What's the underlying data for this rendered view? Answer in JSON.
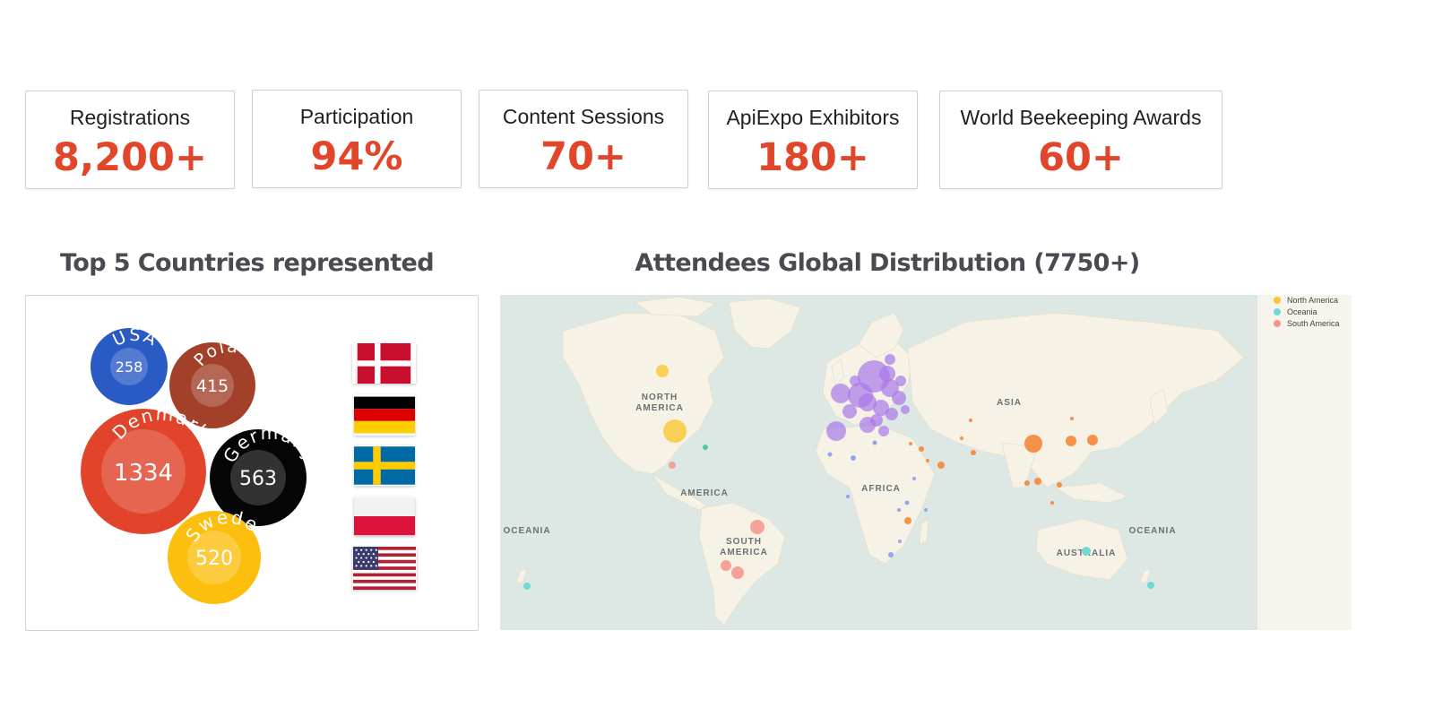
{
  "stats": [
    {
      "label": "Registrations",
      "value": "8,200+"
    },
    {
      "label": "Participation",
      "value": "94%"
    },
    {
      "label": "Content Sessions",
      "value": "70+"
    },
    {
      "label": "ApiExpo Exhibitors",
      "value": "180+"
    },
    {
      "label": "World Beekeeping Awards",
      "value": "60+"
    }
  ],
  "accent_color": "#e1462a",
  "left_section": {
    "title": "Top 5 Countries represented",
    "countries": [
      {
        "name": "USA",
        "value": "258",
        "color": "#2a5bc4"
      },
      {
        "name": "Poland",
        "value": "415",
        "color": "#a3402a"
      },
      {
        "name": "Denmark",
        "value": "1334",
        "color": "#e1442a"
      },
      {
        "name": "Germany",
        "value": "563",
        "color": "#050505"
      },
      {
        "name": "Sweden",
        "value": "520",
        "color": "#fcbf0e"
      }
    ],
    "flags": [
      "denmark-flag",
      "germany-flag",
      "sweden-flag",
      "poland-flag",
      "usa-flag"
    ]
  },
  "right_section": {
    "title": "Attendees Global Distribution (7750+)",
    "map_labels": {
      "north_america": [
        "NORTH",
        "AMERICA"
      ],
      "central_america": "AMERICA",
      "south_america": [
        "SOUTH",
        "AMERICA"
      ],
      "asia": "ASIA",
      "africa": "AFRICA",
      "oceania_left": "OCEANIA",
      "oceania_right": "OCEANIA",
      "australia": "AUSTRALIA"
    },
    "legend": [
      {
        "label": "North America",
        "color": "#fbc531"
      },
      {
        "label": "Oceania",
        "color": "#6fdad2"
      },
      {
        "label": "South America",
        "color": "#f5948a"
      }
    ],
    "region_colors": {
      "europe": "#a978e8",
      "asia": "#f77f2a",
      "africa": "#8a9cf0"
    }
  }
}
